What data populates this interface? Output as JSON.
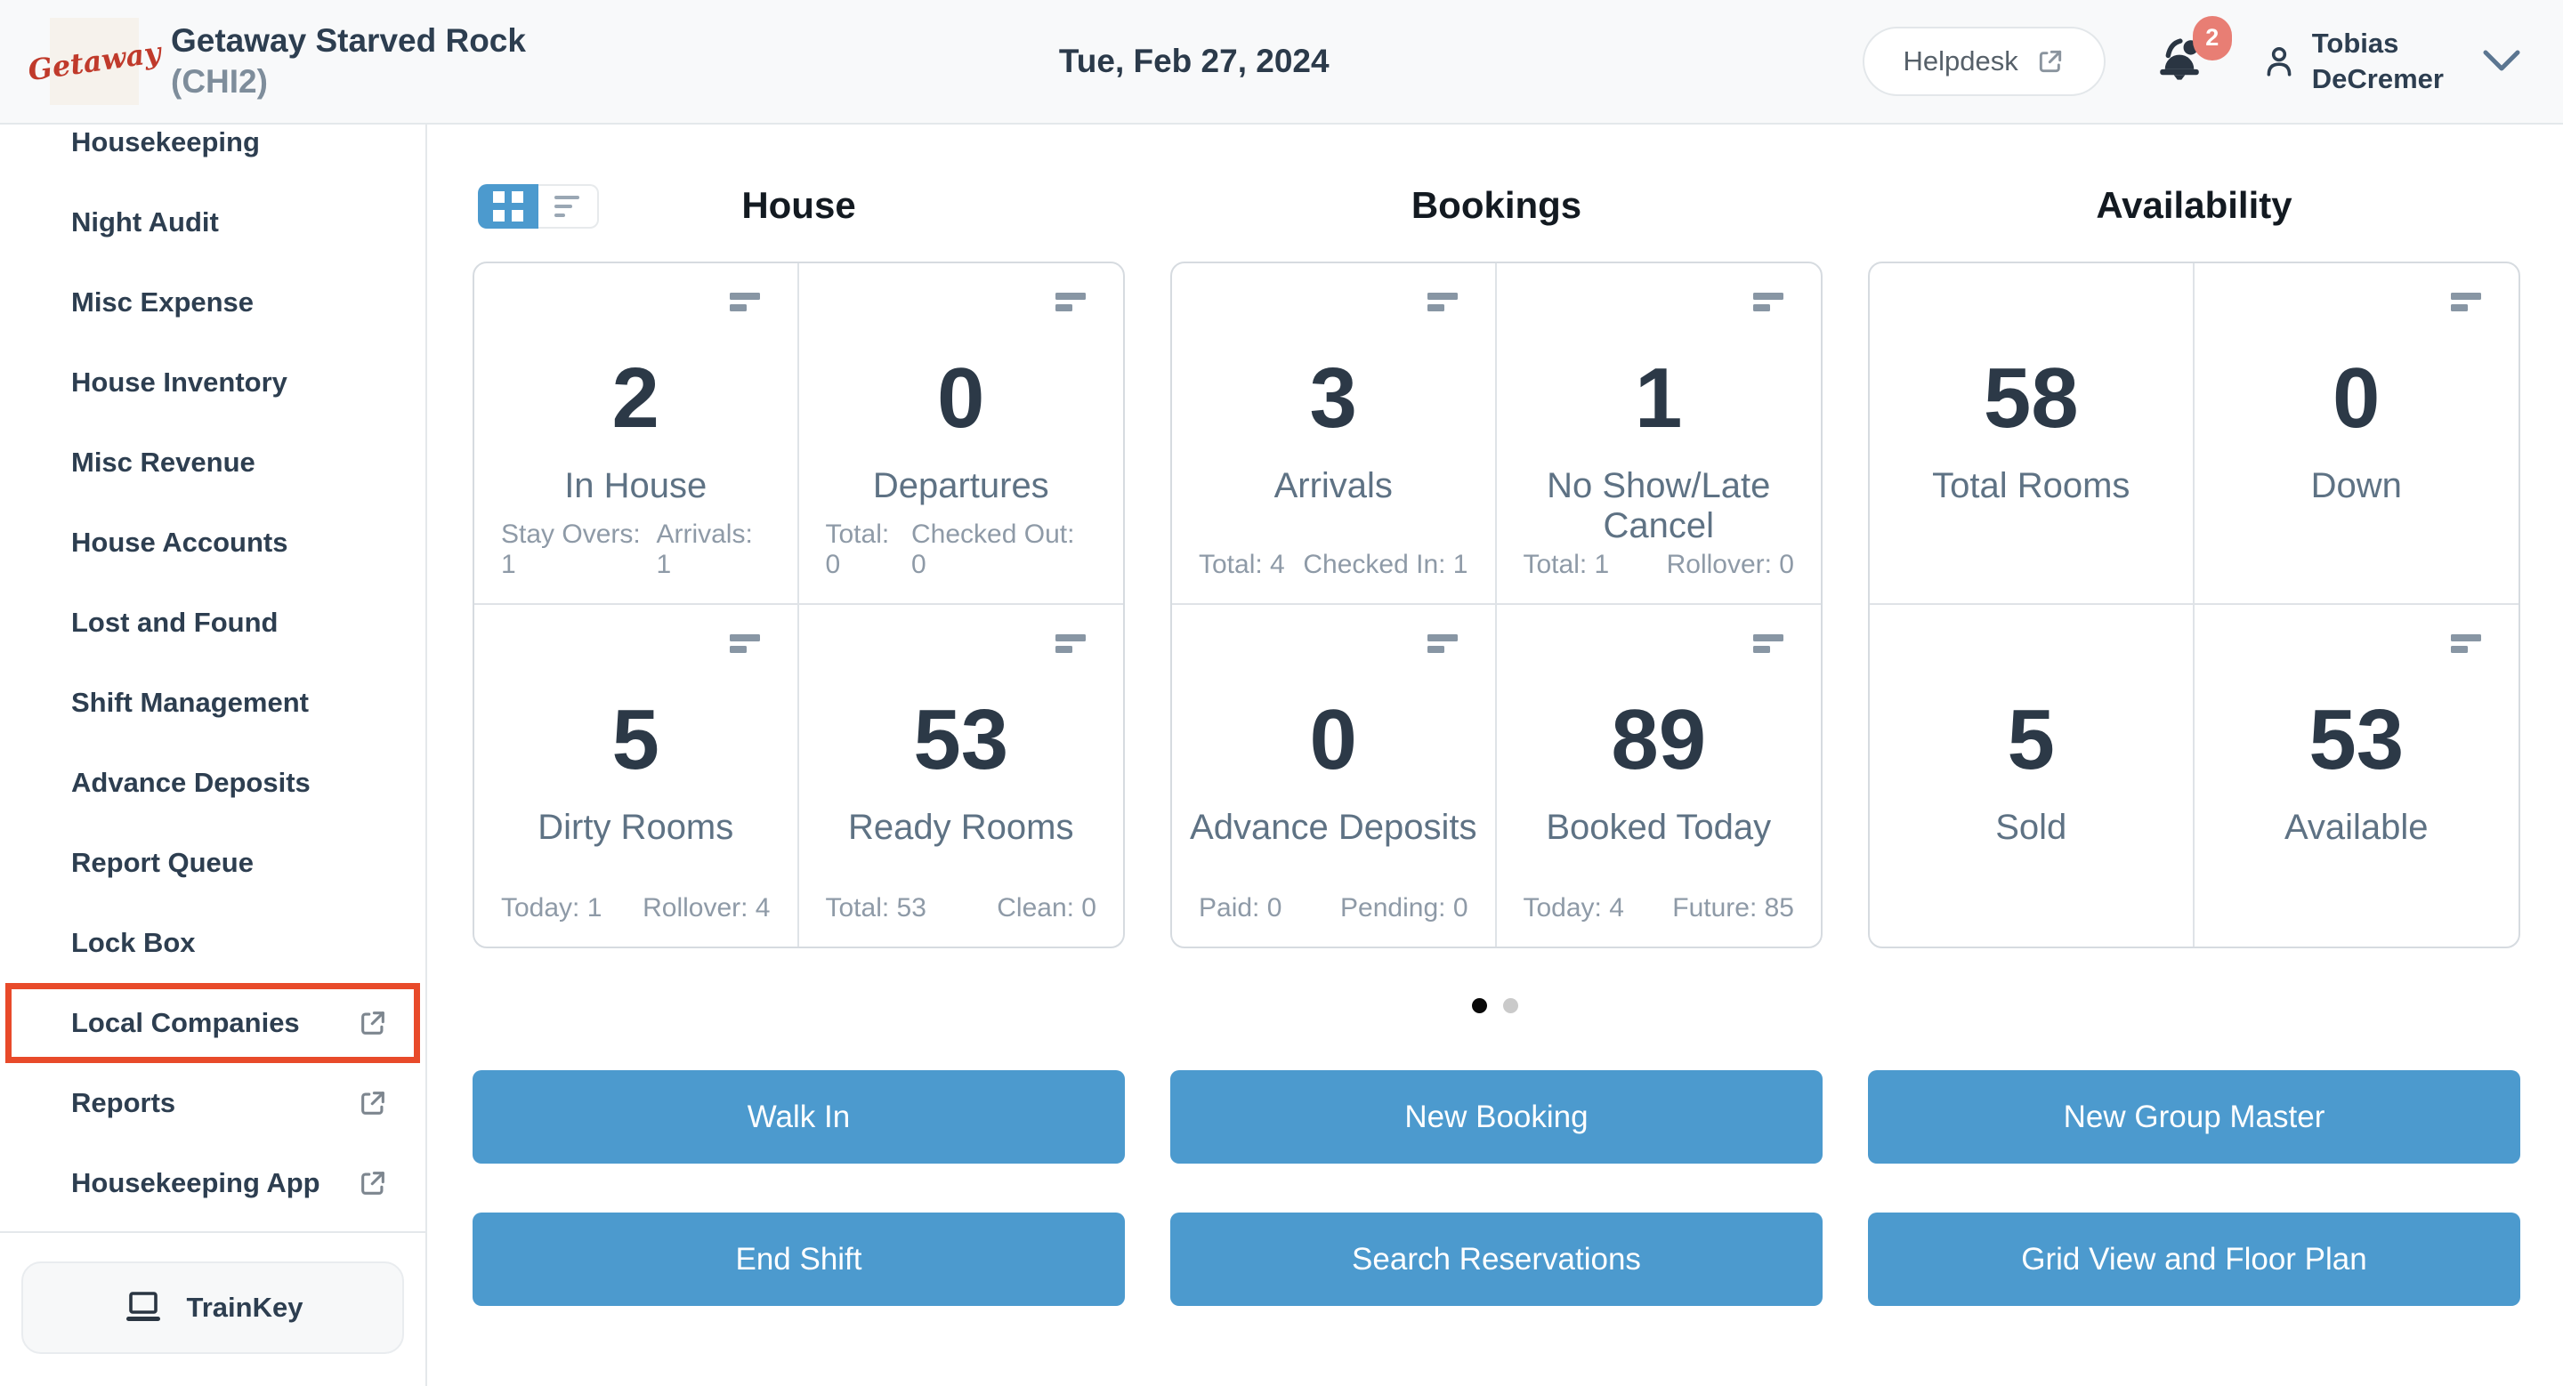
{
  "header": {
    "logo_text": "Getaway",
    "property_name": "Getaway Starved Rock",
    "property_code": "(CHI2)",
    "date": "Tue, Feb 27, 2024",
    "helpdesk_label": "Helpdesk",
    "notification_count": "2",
    "user_name_line1": "Tobias",
    "user_name_line2": "DeCremer"
  },
  "sidebar": {
    "items": [
      {
        "label": "Housekeeping",
        "external": false,
        "highlighted": false
      },
      {
        "label": "Night Audit",
        "external": false,
        "highlighted": false
      },
      {
        "label": "Misc Expense",
        "external": false,
        "highlighted": false
      },
      {
        "label": "House Inventory",
        "external": false,
        "highlighted": false
      },
      {
        "label": "Misc Revenue",
        "external": false,
        "highlighted": false
      },
      {
        "label": "House Accounts",
        "external": false,
        "highlighted": false
      },
      {
        "label": "Lost and Found",
        "external": false,
        "highlighted": false
      },
      {
        "label": "Shift Management",
        "external": false,
        "highlighted": false
      },
      {
        "label": "Advance Deposits",
        "external": false,
        "highlighted": false
      },
      {
        "label": "Report Queue",
        "external": false,
        "highlighted": false
      },
      {
        "label": "Lock Box",
        "external": false,
        "highlighted": false
      },
      {
        "label": "Local Companies",
        "external": true,
        "highlighted": true
      },
      {
        "label": "Reports",
        "external": true,
        "highlighted": false
      },
      {
        "label": "Housekeeping App",
        "external": true,
        "highlighted": false
      }
    ],
    "trainkey_label": "TrainKey"
  },
  "view_toggle": {
    "active": "grid"
  },
  "dashboard": {
    "sections": [
      {
        "title": "House",
        "cards": [
          {
            "value": "2",
            "label": "In House",
            "icon": true,
            "stats": [
              "Stay Overs: 1",
              "Arrivals: 1"
            ]
          },
          {
            "value": "0",
            "label": "Departures",
            "icon": true,
            "stats": [
              "Total: 0",
              "Checked Out: 0"
            ]
          },
          {
            "value": "5",
            "label": "Dirty Rooms",
            "icon": true,
            "stats": [
              "Today: 1",
              "Rollover: 4"
            ]
          },
          {
            "value": "53",
            "label": "Ready Rooms",
            "icon": true,
            "stats": [
              "Total: 53",
              "Clean: 0"
            ]
          }
        ]
      },
      {
        "title": "Bookings",
        "cards": [
          {
            "value": "3",
            "label": "Arrivals",
            "icon": true,
            "stats": [
              "Total: 4",
              "Checked In: 1"
            ]
          },
          {
            "value": "1",
            "label": "No Show/Late Cancel",
            "icon": true,
            "stats": [
              "Total: 1",
              "Rollover: 0"
            ]
          },
          {
            "value": "0",
            "label": "Advance Deposits",
            "icon": true,
            "stats": [
              "Paid: 0",
              "Pending: 0"
            ]
          },
          {
            "value": "89",
            "label": "Booked Today",
            "icon": true,
            "stats": [
              "Today: 4",
              "Future: 85"
            ]
          }
        ]
      },
      {
        "title": "Availability",
        "cards": [
          {
            "value": "58",
            "label": "Total Rooms",
            "icon": false,
            "stats": []
          },
          {
            "value": "0",
            "label": "Down",
            "icon": true,
            "stats": []
          },
          {
            "value": "5",
            "label": "Sold",
            "icon": false,
            "stats": []
          },
          {
            "value": "53",
            "label": "Available",
            "icon": true,
            "stats": []
          }
        ]
      }
    ],
    "pagination": {
      "dots": 2,
      "active_index": 0
    },
    "actions": [
      "Walk In",
      "New Booking",
      "New Group Master",
      "End Shift",
      "Search Reservations",
      "Grid View and Floor Plan"
    ]
  },
  "colors": {
    "accent_blue": "#4c9ace",
    "highlight_red": "#e84a2a",
    "badge_salmon": "#e87e74",
    "logo_red": "#c03a2b"
  }
}
